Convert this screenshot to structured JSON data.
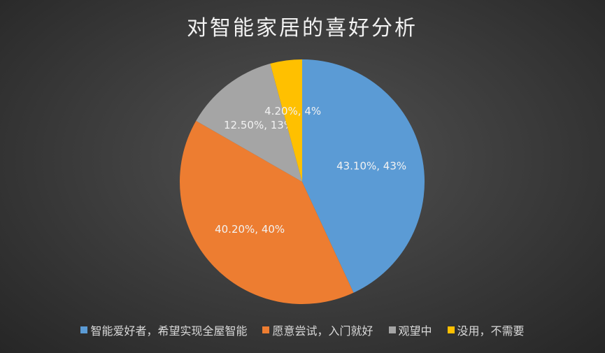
{
  "chart_data": {
    "type": "pie",
    "title": "对智能家居的喜好分析",
    "categories": [
      "智能爱好者，希望实现全屋智能",
      "愿意尝试，入门就好",
      "观望中",
      "没用，不需要"
    ],
    "values": [
      43.1,
      40.2,
      12.5,
      4.2
    ],
    "value_labels": [
      "43.10%, 43%",
      "40.20%, 40%",
      "12.50%, 13%",
      "4.20%, 4%"
    ],
    "colors": [
      "#5b9bd5",
      "#ed7d31",
      "#a5a5a5",
      "#ffc000"
    ],
    "legend": "bottom"
  }
}
